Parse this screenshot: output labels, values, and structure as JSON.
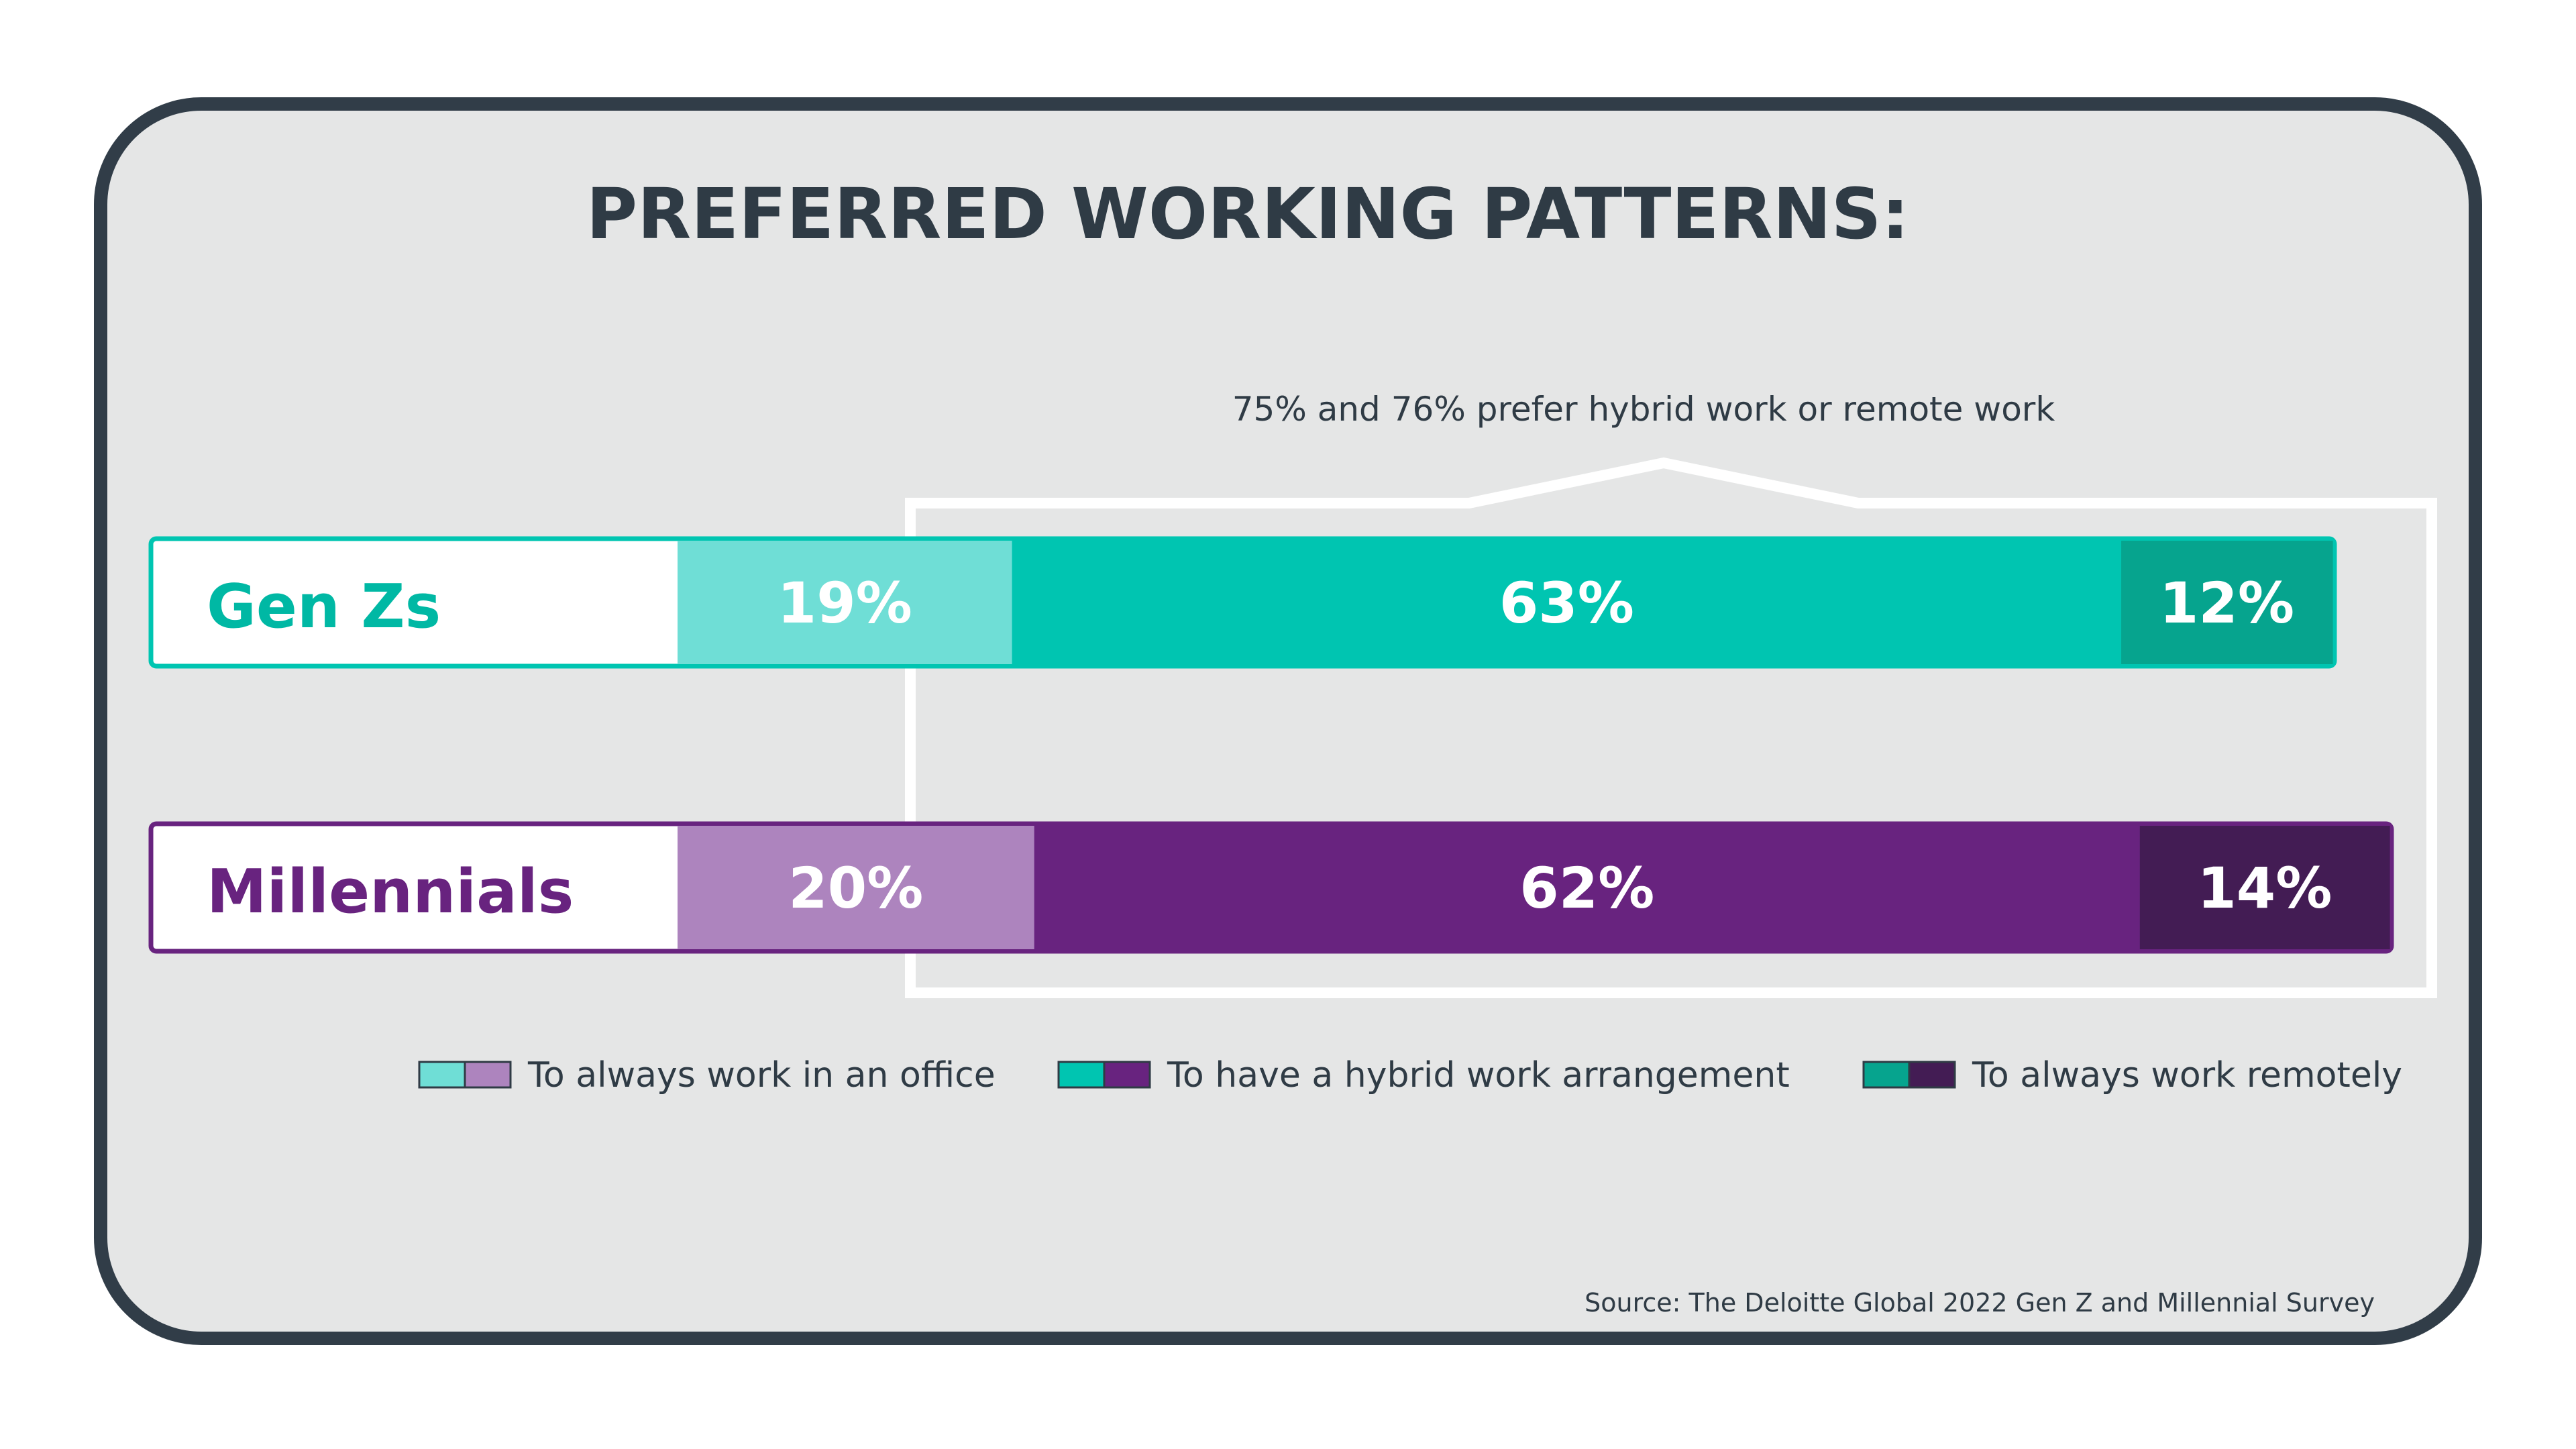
{
  "colors": {
    "panel_bg": "#e5e6e6",
    "panel_border": "#313d48",
    "text_dark": "#2f3b45",
    "highlight_frame": "#ffffff",
    "genz_office": "#6fded6",
    "genz_hybrid": "#00c5b1",
    "genz_remote": "#06a48e",
    "mill_office": "#ad84be",
    "mill_hybrid": "#68237f",
    "mill_remote": "#431c54"
  },
  "chart_data": {
    "type": "bar",
    "orientation": "horizontal",
    "stacked": true,
    "title": "PREFERRED WORKING PATTERNS:",
    "annotation": "75% and 76% prefer hybrid work or remote work",
    "categories": [
      "Gen Zs",
      "Millennials"
    ],
    "series": [
      {
        "name": "To always work in an office",
        "values": [
          19,
          20
        ],
        "labels": [
          "19%",
          "20%"
        ]
      },
      {
        "name": "To have a hybrid work arrangement",
        "values": [
          63,
          62
        ],
        "labels": [
          "63%",
          "62%"
        ]
      },
      {
        "name": "To always work remotely",
        "values": [
          12,
          14
        ],
        "labels": [
          "12%",
          "14%"
        ]
      }
    ],
    "legend_position": "bottom",
    "source": "Source: The Deloitte Global 2022 Gen Z and Millennial Survey"
  }
}
